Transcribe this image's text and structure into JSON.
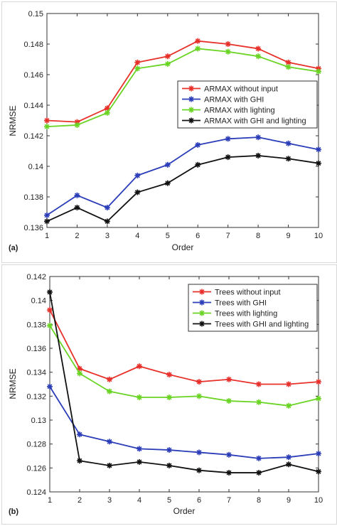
{
  "chart_data": [
    {
      "type": "line",
      "panel_label": "(a)",
      "xlabel": "Order",
      "ylabel": "NRMSE",
      "x": [
        1,
        2,
        3,
        4,
        5,
        6,
        7,
        8,
        9,
        10
      ],
      "xlim": [
        1,
        10
      ],
      "ylim": [
        0.136,
        0.15
      ],
      "xticks": [
        "1",
        "2",
        "3",
        "4",
        "5",
        "6",
        "7",
        "8",
        "9",
        "10"
      ],
      "yticks": [
        "0.136",
        "0.138",
        "0.14",
        "0.142",
        "0.144",
        "0.146",
        "0.148",
        "0.15"
      ],
      "yticks_values": [
        0.136,
        0.138,
        0.14,
        0.142,
        0.144,
        0.146,
        0.148,
        0.15
      ],
      "grid": false,
      "legend_position": "center-right",
      "series": [
        {
          "name": "ARMAX without input",
          "color": "#e8302a",
          "values": [
            0.143,
            0.1429,
            0.1438,
            0.1468,
            0.1472,
            0.1482,
            0.148,
            0.1477,
            0.1468,
            0.1464
          ]
        },
        {
          "name": "ARMAX with GHI",
          "color": "#2b3db8",
          "values": [
            0.1368,
            0.1381,
            0.1373,
            0.1394,
            0.1401,
            0.1414,
            0.1418,
            0.1419,
            0.1415,
            0.1411
          ]
        },
        {
          "name": "ARMAX with lighting",
          "color": "#6ad424",
          "values": [
            0.1426,
            0.1427,
            0.1435,
            0.1464,
            0.1467,
            0.1477,
            0.1475,
            0.1472,
            0.1465,
            0.1462
          ]
        },
        {
          "name": "ARMAX with GHI and lighting",
          "color": "#111111",
          "values": [
            0.1364,
            0.1373,
            0.1364,
            0.1383,
            0.1389,
            0.1401,
            0.1406,
            0.1407,
            0.1405,
            0.1402
          ]
        }
      ]
    },
    {
      "type": "line",
      "panel_label": "(b)",
      "xlabel": "Order",
      "ylabel": "NRMSE",
      "x": [
        1,
        2,
        3,
        4,
        5,
        6,
        7,
        8,
        9,
        10
      ],
      "xlim": [
        1,
        10
      ],
      "ylim": [
        0.124,
        0.142
      ],
      "xticks": [
        "1",
        "2",
        "3",
        "4",
        "5",
        "6",
        "7",
        "8",
        "9",
        "10"
      ],
      "yticks": [
        "0.124",
        "0.126",
        "0.128",
        "0.13",
        "0.132",
        "0.134",
        "0.136",
        "0.138",
        "0.14",
        "0.142"
      ],
      "yticks_values": [
        0.124,
        0.126,
        0.128,
        0.13,
        0.132,
        0.134,
        0.136,
        0.138,
        0.14,
        0.142
      ],
      "grid": false,
      "legend_position": "top-right",
      "series": [
        {
          "name": "Trees without input",
          "color": "#e8302a",
          "values": [
            0.1392,
            0.1343,
            0.1334,
            0.1345,
            0.1338,
            0.1332,
            0.1334,
            0.133,
            0.133,
            0.1332
          ]
        },
        {
          "name": "Trees with GHI",
          "color": "#2b3db8",
          "values": [
            0.1328,
            0.1288,
            0.1282,
            0.1276,
            0.1275,
            0.1273,
            0.1271,
            0.1268,
            0.1269,
            0.1272
          ]
        },
        {
          "name": "Trees with lighting",
          "color": "#6ad424",
          "values": [
            0.1379,
            0.1339,
            0.1324,
            0.1319,
            0.1319,
            0.132,
            0.1316,
            0.1315,
            0.1312,
            0.1318
          ]
        },
        {
          "name": "Trees with GHI and lighting",
          "color": "#111111",
          "values": [
            0.1407,
            0.1266,
            0.1262,
            0.1265,
            0.1262,
            0.1258,
            0.1256,
            0.1256,
            0.1263,
            0.1257
          ]
        }
      ]
    }
  ]
}
